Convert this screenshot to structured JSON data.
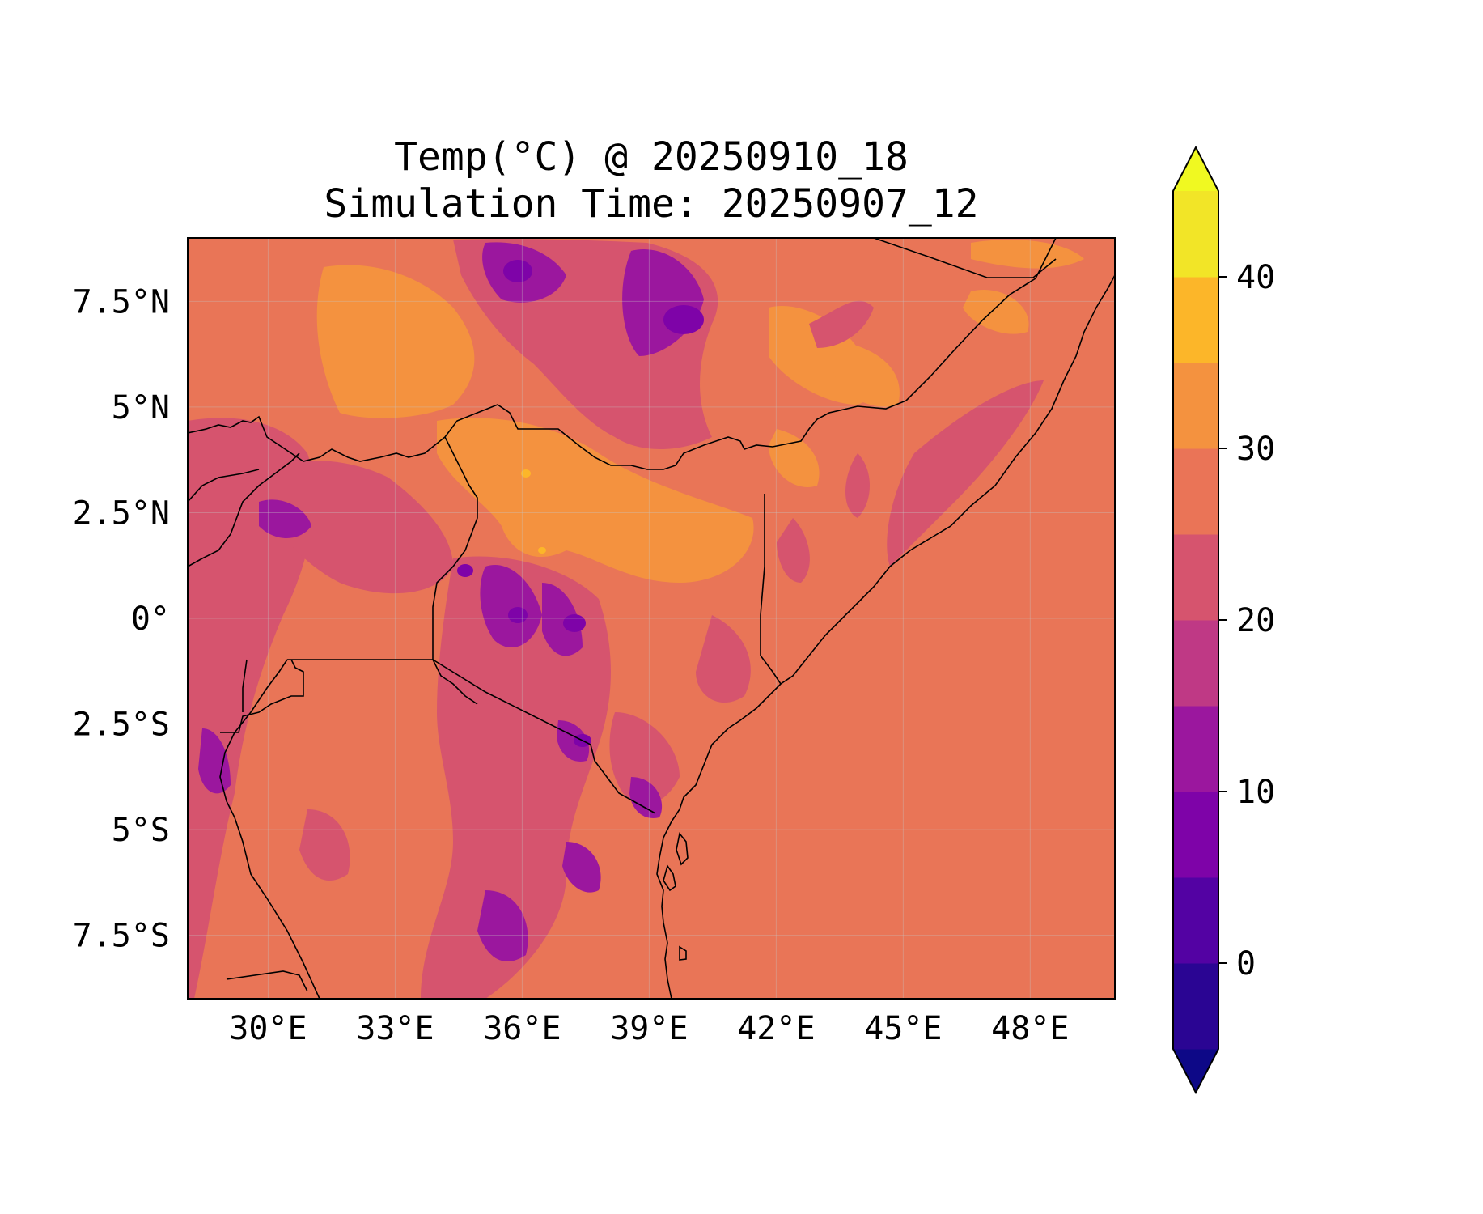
{
  "title": {
    "line1": "Temp(°C) @ 20250910_18",
    "line2": "Simulation Time: 20250907_12"
  },
  "map": {
    "lon_ticks": [
      "30°E",
      "33°E",
      "36°E",
      "39°E",
      "42°E",
      "45°E",
      "48°E"
    ],
    "lat_ticks": [
      "7.5°N",
      "5°N",
      "2.5°N",
      "0°",
      "2.5°S",
      "5°S",
      "7.5°S"
    ],
    "lon_range": [
      28.1,
      50.0
    ],
    "lat_range": [
      -9.0,
      9.0
    ],
    "background_color": "#e97557",
    "ocean_color": "#ea7456",
    "gridlines": true
  },
  "colorbar": {
    "levels": [
      -5,
      0,
      5,
      10,
      15,
      20,
      25,
      30,
      35,
      40,
      45
    ],
    "tick_labels": [
      "0",
      "10",
      "20",
      "30",
      "40"
    ],
    "tick_values": [
      0,
      10,
      20,
      30,
      40
    ],
    "extend": "both",
    "colors": [
      "#0d0887",
      "#2a0593",
      "#5302a3",
      "#7e03a8",
      "#9b179e",
      "#bf3985",
      "#d6546e",
      "#ea7457",
      "#f4923f",
      "#fcb629",
      "#f2e527",
      "#f0f921"
    ]
  },
  "chart_data": {
    "type": "heatmap",
    "variable": "Temp(°C)",
    "valid_time": "20250910_18",
    "simulation_time": "20250907_12",
    "lon_ticks": [
      30,
      33,
      36,
      39,
      42,
      45,
      48
    ],
    "lat_ticks": [
      7.5,
      5,
      2.5,
      0,
      -2.5,
      -5,
      -7.5
    ],
    "color_levels": [
      -5,
      0,
      5,
      10,
      15,
      20,
      25,
      30,
      35,
      40,
      45
    ]
  }
}
